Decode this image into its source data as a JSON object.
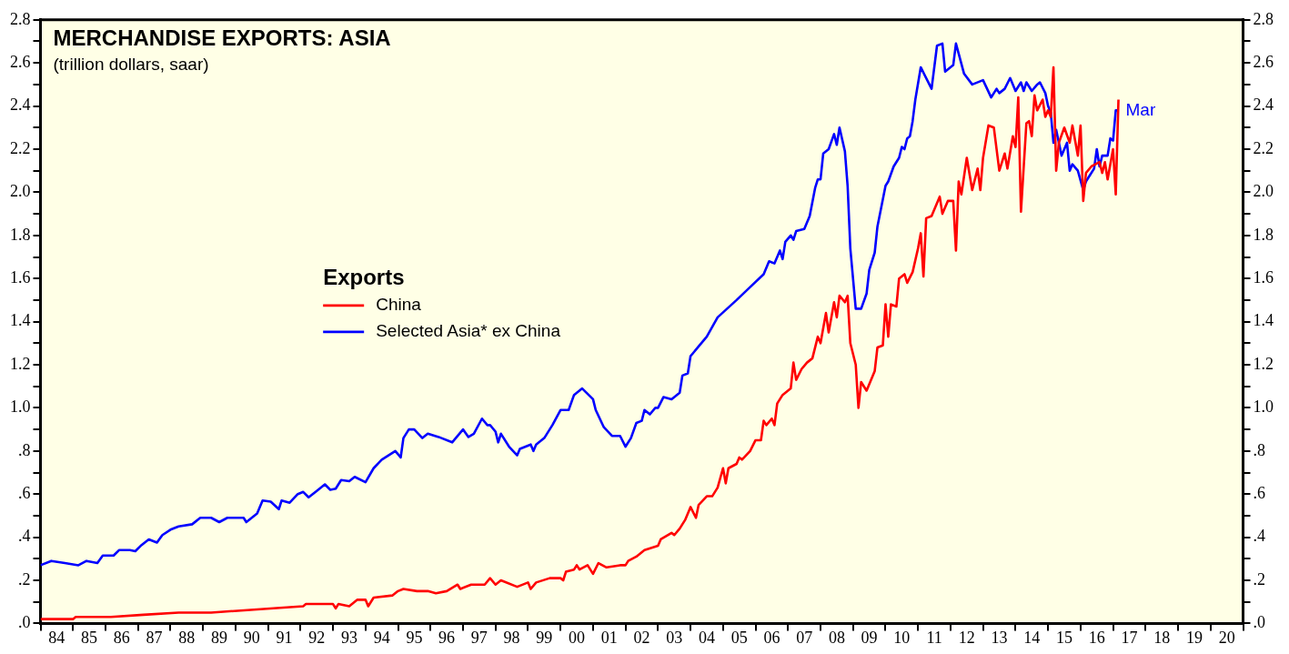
{
  "chart_data": {
    "type": "line",
    "title": "MERCHANDISE EXPORTS: ASIA",
    "subtitle": "(trillion dollars, saar)",
    "legend_title": "Exports",
    "legend": "center",
    "grid": false,
    "xlim": [
      "1984-01",
      "2021-01"
    ],
    "xticks": [
      {
        "value": "1984-01",
        "label": null
      },
      {
        "value": "1984-07",
        "label": "84"
      },
      {
        "value": "1985-01",
        "label": null
      },
      {
        "value": "1985-07",
        "label": "85"
      },
      {
        "value": "1986-01",
        "label": null
      },
      {
        "value": "1986-07",
        "label": "86"
      },
      {
        "value": "1987-01",
        "label": null
      },
      {
        "value": "1987-07",
        "label": "87"
      },
      {
        "value": "1988-01",
        "label": null
      },
      {
        "value": "1988-07",
        "label": "88"
      },
      {
        "value": "1989-01",
        "label": null
      },
      {
        "value": "1989-07",
        "label": "89"
      },
      {
        "value": "1990-01",
        "label": null
      },
      {
        "value": "1990-07",
        "label": "90"
      },
      {
        "value": "1991-01",
        "label": null
      },
      {
        "value": "1991-07",
        "label": "91"
      },
      {
        "value": "1992-01",
        "label": null
      },
      {
        "value": "1992-07",
        "label": "92"
      },
      {
        "value": "1993-01",
        "label": null
      },
      {
        "value": "1993-07",
        "label": "93"
      },
      {
        "value": "1994-01",
        "label": null
      },
      {
        "value": "1994-07",
        "label": "94"
      },
      {
        "value": "1995-01",
        "label": null
      },
      {
        "value": "1995-07",
        "label": "95"
      },
      {
        "value": "1996-01",
        "label": null
      },
      {
        "value": "1996-07",
        "label": "96"
      },
      {
        "value": "1997-01",
        "label": null
      },
      {
        "value": "1997-07",
        "label": "97"
      },
      {
        "value": "1998-01",
        "label": null
      },
      {
        "value": "1998-07",
        "label": "98"
      },
      {
        "value": "1999-01",
        "label": null
      },
      {
        "value": "1999-07",
        "label": "99"
      },
      {
        "value": "2000-01",
        "label": null
      },
      {
        "value": "2000-07",
        "label": "00"
      },
      {
        "value": "2001-01",
        "label": null
      },
      {
        "value": "2001-07",
        "label": "01"
      },
      {
        "value": "2002-01",
        "label": null
      },
      {
        "value": "2002-07",
        "label": "02"
      },
      {
        "value": "2003-01",
        "label": null
      },
      {
        "value": "2003-07",
        "label": "03"
      },
      {
        "value": "2004-01",
        "label": null
      },
      {
        "value": "2004-07",
        "label": "04"
      },
      {
        "value": "2005-01",
        "label": null
      },
      {
        "value": "2005-07",
        "label": "05"
      },
      {
        "value": "2006-01",
        "label": null
      },
      {
        "value": "2006-07",
        "label": "06"
      },
      {
        "value": "2007-01",
        "label": null
      },
      {
        "value": "2007-07",
        "label": "07"
      },
      {
        "value": "2008-01",
        "label": null
      },
      {
        "value": "2008-07",
        "label": "08"
      },
      {
        "value": "2009-01",
        "label": null
      },
      {
        "value": "2009-07",
        "label": "09"
      },
      {
        "value": "2010-01",
        "label": null
      },
      {
        "value": "2010-07",
        "label": "10"
      },
      {
        "value": "2011-01",
        "label": null
      },
      {
        "value": "2011-07",
        "label": "11"
      },
      {
        "value": "2012-01",
        "label": null
      },
      {
        "value": "2012-07",
        "label": "12"
      },
      {
        "value": "2013-01",
        "label": null
      },
      {
        "value": "2013-07",
        "label": "13"
      },
      {
        "value": "2014-01",
        "label": null
      },
      {
        "value": "2014-07",
        "label": "14"
      },
      {
        "value": "2015-01",
        "label": null
      },
      {
        "value": "2015-07",
        "label": "15"
      },
      {
        "value": "2016-01",
        "label": null
      },
      {
        "value": "2016-07",
        "label": "16"
      },
      {
        "value": "2017-01",
        "label": null
      },
      {
        "value": "2017-07",
        "label": "17"
      },
      {
        "value": "2018-01",
        "label": null
      },
      {
        "value": "2018-07",
        "label": "18"
      },
      {
        "value": "2019-01",
        "label": null
      },
      {
        "value": "2019-07",
        "label": "19"
      },
      {
        "value": "2020-01",
        "label": null
      },
      {
        "value": "2020-07",
        "label": "20"
      },
      {
        "value": "2021-01",
        "label": null
      }
    ],
    "ylim": [
      0,
      2.8
    ],
    "yticks": [
      {
        "value": 0,
        "label": ".0"
      },
      {
        "value": 0.1,
        "label": null
      },
      {
        "value": 0.2,
        "label": ".2"
      },
      {
        "value": 0.3,
        "label": null
      },
      {
        "value": 0.4,
        "label": ".4"
      },
      {
        "value": 0.5,
        "label": null
      },
      {
        "value": 0.6,
        "label": ".6"
      },
      {
        "value": 0.7,
        "label": null
      },
      {
        "value": 0.8,
        "label": ".8"
      },
      {
        "value": 0.9,
        "label": null
      },
      {
        "value": 1,
        "label": "1.0"
      },
      {
        "value": 1.1,
        "label": null
      },
      1.2,
      {
        "value": 1.3,
        "label": null
      },
      1.4,
      {
        "value": 1.5,
        "label": null
      },
      1.6,
      {
        "value": 1.7,
        "label": null
      },
      1.8,
      {
        "value": 1.9,
        "label": null
      },
      {
        "value": 2,
        "label": "2.0"
      },
      {
        "value": 2.1,
        "label": null
      },
      2.2,
      {
        "value": 2.3,
        "label": null
      },
      2.4,
      {
        "value": 2.5,
        "label": null
      },
      2.6,
      {
        "value": 2.7,
        "label": null
      },
      2.8
    ],
    "y2lim": [
      0,
      2.8
    ],
    "y2ticks": [
      {
        "value": 0,
        "label": ".0"
      },
      {
        "value": 0.1,
        "label": null
      },
      {
        "value": 0.2,
        "label": ".2"
      },
      {
        "value": 0.3,
        "label": null
      },
      {
        "value": 0.4,
        "label": ".4"
      },
      {
        "value": 0.5,
        "label": null
      },
      {
        "value": 0.6,
        "label": ".6"
      },
      {
        "value": 0.7,
        "label": null
      },
      {
        "value": 0.8,
        "label": ".8"
      },
      {
        "value": 0.9,
        "label": null
      },
      {
        "value": 1,
        "label": "1.0"
      },
      {
        "value": 1.1,
        "label": null
      },
      1.2,
      {
        "value": 1.3,
        "label": null
      },
      1.4,
      {
        "value": 1.5,
        "label": null
      },
      1.6,
      {
        "value": 1.7,
        "label": null
      },
      1.8,
      {
        "value": 1.9,
        "label": null
      },
      {
        "value": 2,
        "label": "2.0"
      },
      {
        "value": 2.1,
        "label": null
      },
      2.2,
      {
        "value": 2.3,
        "label": null
      },
      2.4,
      {
        "value": 2.5,
        "label": null
      },
      2.6,
      {
        "value": 2.7,
        "label": null
      },
      2.8
    ],
    "annotations": [
      {
        "text": "Mar",
        "x": "2017-03",
        "y": 2.38
      }
    ],
    "series": [
      {
        "name": "China",
        "color": "#ff0000",
        "x": [
          "1984-01",
          "1985-01",
          "1985-02",
          "1986-03",
          "1987-03",
          "1988-04",
          "1989-04",
          "1990-03",
          "1991-03",
          "1992-02",
          "1992-03",
          "1993-01",
          "1993-02",
          "1993-03",
          "1993-07",
          "1993-10",
          "1994-01",
          "1994-02",
          "1994-04",
          "1994-11",
          "1995-01",
          "1995-03",
          "1995-08",
          "1995-12",
          "1996-03",
          "1996-07",
          "1996-11",
          "1996-12",
          "1997-04",
          "1997-09",
          "1997-11",
          "1998-01",
          "1998-03",
          "1998-09",
          "1999-01",
          "1999-02",
          "1999-04",
          "1999-09",
          "2000-01",
          "2000-02",
          "2000-03",
          "2000-06",
          "2000-07",
          "2000-08",
          "2000-11",
          "2001-01",
          "2001-03",
          "2001-06",
          "2001-11",
          "2002-01",
          "2002-02",
          "2002-05",
          "2002-08",
          "2003-01",
          "2003-02",
          "2003-06",
          "2003-07",
          "2003-09",
          "2003-11",
          "2004-01",
          "2004-03",
          "2004-04",
          "2004-07",
          "2004-09",
          "2004-11",
          "2005-01",
          "2005-02",
          "2005-03",
          "2005-06",
          "2005-07",
          "2005-08",
          "2005-11",
          "2006-01",
          "2006-03",
          "2006-04",
          "2006-05",
          "2006-07",
          "2006-08",
          "2006-09",
          "2006-11",
          "2007-02",
          "2007-03",
          "2007-04",
          "2007-06",
          "2007-08",
          "2007-10",
          "2007-12",
          "2008-01",
          "2008-03",
          "2008-04",
          "2008-06",
          "2008-07",
          "2008-08",
          "2008-10",
          "2008-11",
          "2008-12",
          "2009-02",
          "2009-03",
          "2009-04",
          "2009-06",
          "2009-09",
          "2009-10",
          "2009-12",
          "2010-01",
          "2010-02",
          "2010-03",
          "2010-05",
          "2010-06",
          "2010-08",
          "2010-09",
          "2010-11",
          "2011-01",
          "2011-02",
          "2011-03",
          "2011-04",
          "2011-06",
          "2011-09",
          "2011-10",
          "2011-12",
          "2012-02",
          "2012-03",
          "2012-04",
          "2012-05",
          "2012-07",
          "2012-09",
          "2012-11",
          "2012-12",
          "2013-01",
          "2013-03",
          "2013-05",
          "2013-07",
          "2013-09",
          "2013-10",
          "2013-12",
          "2014-01",
          "2014-02",
          "2014-03",
          "2014-05",
          "2014-06",
          "2014-07",
          "2014-08",
          "2014-09",
          "2014-11",
          "2014-12",
          "2015-01",
          "2015-02",
          "2015-03",
          "2015-04",
          "2015-05",
          "2015-07",
          "2015-09",
          "2015-10",
          "2015-12",
          "2016-01",
          "2016-02",
          "2016-03",
          "2016-05",
          "2016-08",
          "2016-09",
          "2016-10",
          "2016-11",
          "2016-12",
          "2017-01",
          "2017-02",
          "2017-03"
        ],
        "values": [
          0.02,
          0.02,
          0.03,
          0.03,
          0.04,
          0.05,
          0.05,
          0.06,
          0.07,
          0.08,
          0.09,
          0.09,
          0.07,
          0.09,
          0.08,
          0.11,
          0.11,
          0.08,
          0.12,
          0.13,
          0.15,
          0.16,
          0.15,
          0.15,
          0.14,
          0.15,
          0.18,
          0.16,
          0.18,
          0.18,
          0.21,
          0.18,
          0.2,
          0.17,
          0.19,
          0.16,
          0.19,
          0.21,
          0.21,
          0.2,
          0.24,
          0.25,
          0.27,
          0.25,
          0.27,
          0.23,
          0.28,
          0.26,
          0.27,
          0.27,
          0.29,
          0.31,
          0.34,
          0.36,
          0.39,
          0.42,
          0.41,
          0.44,
          0.48,
          0.54,
          0.49,
          0.55,
          0.59,
          0.59,
          0.63,
          0.72,
          0.65,
          0.72,
          0.74,
          0.77,
          0.76,
          0.8,
          0.85,
          0.85,
          0.94,
          0.92,
          0.95,
          0.92,
          1.02,
          1.06,
          1.09,
          1.21,
          1.13,
          1.18,
          1.21,
          1.23,
          1.33,
          1.3,
          1.44,
          1.35,
          1.49,
          1.42,
          1.52,
          1.49,
          1.52,
          1.3,
          1.2,
          1.0,
          1.12,
          1.08,
          1.17,
          1.28,
          1.29,
          1.48,
          1.33,
          1.48,
          1.47,
          1.6,
          1.62,
          1.58,
          1.63,
          1.74,
          1.81,
          1.61,
          1.88,
          1.89,
          1.98,
          1.9,
          1.96,
          1.96,
          1.73,
          2.05,
          1.99,
          2.16,
          2.01,
          2.11,
          2.01,
          2.16,
          2.31,
          2.3,
          2.1,
          2.18,
          2.11,
          2.26,
          2.21,
          2.44,
          1.91,
          2.32,
          2.33,
          2.26,
          2.45,
          2.38,
          2.43,
          2.35,
          2.38,
          2.35,
          2.58,
          2.1,
          2.23,
          2.3,
          2.23,
          2.31,
          2.17,
          2.31,
          1.96,
          2.09,
          2.12,
          2.14,
          2.09,
          2.14,
          2.06,
          2.13,
          2.2,
          1.99,
          2.43
        ]
      },
      {
        "name": "Selected Asia* ex China",
        "color": "#0000ff",
        "x": [
          "1984-01",
          "1984-05",
          "1984-10",
          "1985-03",
          "1985-06",
          "1985-10",
          "1985-12",
          "1986-04",
          "1986-06",
          "1986-10",
          "1986-12",
          "1987-02",
          "1987-05",
          "1987-08",
          "1987-10",
          "1988-01",
          "1988-04",
          "1988-09",
          "1988-12",
          "1989-04",
          "1989-07",
          "1989-10",
          "1990-04",
          "1990-05",
          "1990-09",
          "1990-11",
          "1991-02",
          "1991-05",
          "1991-06",
          "1991-09",
          "1991-12",
          "1992-02",
          "1992-04",
          "1992-07",
          "1992-10",
          "1992-12",
          "1993-02",
          "1993-04",
          "1993-07",
          "1993-09",
          "1994-01",
          "1994-04",
          "1994-07",
          "1994-12",
          "1995-02",
          "1995-03",
          "1995-05",
          "1995-07",
          "1995-10",
          "1995-12",
          "1996-04",
          "1996-09",
          "1997-01",
          "1997-03",
          "1997-05",
          "1997-08",
          "1997-10",
          "1997-11",
          "1998-01",
          "1998-02",
          "1998-03",
          "1998-06",
          "1998-09",
          "1998-10",
          "1999-02",
          "1999-03",
          "1999-04",
          "1999-07",
          "1999-10",
          "2000-01",
          "2000-04",
          "2000-06",
          "2000-09",
          "2001-01",
          "2001-02",
          "2001-05",
          "2001-08",
          "2001-11",
          "2002-01",
          "2002-03",
          "2002-05",
          "2002-07",
          "2002-08",
          "2002-10",
          "2002-12",
          "2003-01",
          "2003-03",
          "2003-06",
          "2003-09",
          "2003-10",
          "2003-12",
          "2004-01",
          "2004-03",
          "2004-07",
          "2004-11",
          "2005-06",
          "2005-11",
          "2006-04",
          "2006-06",
          "2006-08",
          "2006-10",
          "2006-11",
          "2006-12",
          "2007-02",
          "2007-03",
          "2007-04",
          "2007-07",
          "2007-09",
          "2007-11",
          "2007-12",
          "2008-01",
          "2008-02",
          "2008-04",
          "2008-06",
          "2008-07",
          "2008-08",
          "2008-10",
          "2008-11",
          "2008-12",
          "2009-02",
          "2009-04",
          "2009-06",
          "2009-07",
          "2009-09",
          "2009-10",
          "2010-01",
          "2010-02",
          "2010-04",
          "2010-06",
          "2010-07",
          "2010-08",
          "2010-09",
          "2010-10",
          "2010-11",
          "2010-12",
          "2011-02",
          "2011-06",
          "2011-08",
          "2011-10",
          "2011-11",
          "2012-02",
          "2012-03",
          "2012-06",
          "2012-09",
          "2013-01",
          "2013-04",
          "2013-06",
          "2013-07",
          "2013-09",
          "2013-11",
          "2014-01",
          "2014-03",
          "2014-04",
          "2014-05",
          "2014-07",
          "2014-09",
          "2014-10",
          "2014-12",
          "2015-01",
          "2015-02",
          "2015-03",
          "2015-04",
          "2015-06",
          "2015-08",
          "2015-09",
          "2015-10",
          "2015-12",
          "2016-02",
          "2016-03",
          "2016-04",
          "2016-06",
          "2016-07",
          "2016-08",
          "2016-09",
          "2016-11",
          "2016-12",
          "2017-01",
          "2017-02",
          "2017-03"
        ],
        "values": [
          0.27,
          0.29,
          0.28,
          0.27,
          0.29,
          0.28,
          0.315,
          0.315,
          0.34,
          0.34,
          0.335,
          0.36,
          0.39,
          0.375,
          0.41,
          0.435,
          0.45,
          0.46,
          0.49,
          0.49,
          0.47,
          0.49,
          0.49,
          0.47,
          0.51,
          0.57,
          0.565,
          0.53,
          0.57,
          0.56,
          0.6,
          0.61,
          0.585,
          0.615,
          0.645,
          0.62,
          0.625,
          0.665,
          0.66,
          0.68,
          0.655,
          0.72,
          0.76,
          0.8,
          0.77,
          0.86,
          0.9,
          0.9,
          0.86,
          0.88,
          0.865,
          0.84,
          0.9,
          0.865,
          0.88,
          0.95,
          0.92,
          0.92,
          0.89,
          0.84,
          0.88,
          0.82,
          0.78,
          0.81,
          0.83,
          0.8,
          0.83,
          0.86,
          0.92,
          0.99,
          0.99,
          1.06,
          1.09,
          1.04,
          0.99,
          0.91,
          0.87,
          0.87,
          0.82,
          0.86,
          0.93,
          0.94,
          0.99,
          0.97,
          1.0,
          1.0,
          1.05,
          1.04,
          1.07,
          1.15,
          1.16,
          1.24,
          1.27,
          1.33,
          1.42,
          1.5,
          1.56,
          1.62,
          1.68,
          1.67,
          1.73,
          1.69,
          1.77,
          1.8,
          1.78,
          1.82,
          1.83,
          1.89,
          2.02,
          2.06,
          2.06,
          2.18,
          2.2,
          2.27,
          2.22,
          2.3,
          2.19,
          2.03,
          1.74,
          1.46,
          1.46,
          1.53,
          1.64,
          1.72,
          1.84,
          2.03,
          2.05,
          2.12,
          2.16,
          2.21,
          2.2,
          2.25,
          2.26,
          2.33,
          2.43,
          2.58,
          2.48,
          2.68,
          2.69,
          2.56,
          2.59,
          2.69,
          2.55,
          2.5,
          2.52,
          2.44,
          2.48,
          2.46,
          2.48,
          2.53,
          2.47,
          2.51,
          2.47,
          2.51,
          2.47,
          2.5,
          2.51,
          2.46,
          2.4,
          2.37,
          2.23,
          2.29,
          2.17,
          2.23,
          2.1,
          2.13,
          2.1,
          2.01,
          2.05,
          2.07,
          2.11,
          2.2,
          2.12,
          2.17,
          2.17,
          2.25,
          2.24,
          2.38,
          2.38
        ]
      }
    ]
  }
}
